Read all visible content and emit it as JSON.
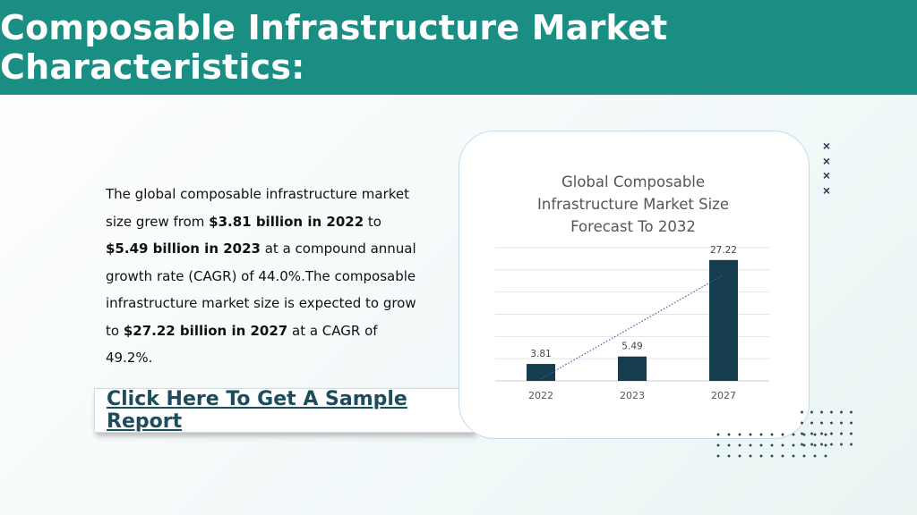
{
  "header": {
    "title": "Composable Infrastructure Market Characteristics:"
  },
  "description": {
    "t1": "The global composable infrastructure market size grew from ",
    "b1": "$3.81 billion in 2022",
    "t2": " to ",
    "b2": "$5.49 billion in 2023",
    "t3": " at a compound annual growth rate (CAGR) of 44.0%.The composable infrastructure market size is expected to grow to ",
    "b3": "$27.22 billion in 2027",
    "t4": " at a CAGR of 49.2%."
  },
  "cta": {
    "label": "Click Here To Get A Sample Report"
  },
  "decor": {
    "x_marks": [
      "×",
      "×",
      "×",
      "×"
    ]
  },
  "colors": {
    "header": "#1b8e84",
    "bar": "#163d4e",
    "link": "#1b4d5e",
    "trendline": "#3a5ea8"
  },
  "chart_data": {
    "type": "bar",
    "title_lines": [
      "Global Composable",
      "Infrastructure Market Size",
      "Forecast To 2032"
    ],
    "categories": [
      "2022",
      "2023",
      "2027"
    ],
    "values": [
      3.81,
      5.49,
      27.22
    ],
    "value_labels": [
      "3.81",
      "5.49",
      "27.22"
    ],
    "ylim": [
      0,
      30
    ],
    "grid": true,
    "trendline": "linear, dotted",
    "legend": "none"
  }
}
